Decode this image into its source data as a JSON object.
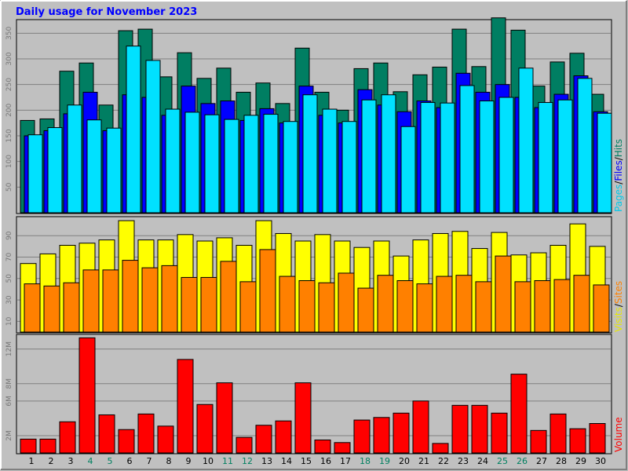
{
  "chart_data": {
    "type": "bar",
    "title": "Daily usage for November 2023",
    "x": [
      "1",
      "2",
      "3",
      "4",
      "5",
      "6",
      "7",
      "8",
      "9",
      "10",
      "11",
      "12",
      "13",
      "14",
      "15",
      "16",
      "17",
      "18",
      "19",
      "20",
      "21",
      "22",
      "23",
      "24",
      "25",
      "26",
      "27",
      "28",
      "29",
      "30"
    ],
    "weekend_days": [
      "4",
      "5",
      "11",
      "12",
      "18",
      "19",
      "25",
      "26"
    ],
    "panels": [
      {
        "id": "hits_files_pages",
        "label_parts": [
          {
            "text": "Pages",
            "color": "#00c8e8"
          },
          {
            "text": "/",
            "color": "#000000"
          },
          {
            "text": "Files",
            "color": "#0000ff"
          },
          {
            "text": "/",
            "color": "#000000"
          },
          {
            "text": "Hits",
            "color": "#007e62"
          }
        ],
        "ylim": [
          0,
          375
        ],
        "yticks": [
          50,
          100,
          150,
          200,
          250,
          300,
          350
        ],
        "ytick_labels": [
          "50",
          "100",
          "150",
          "200",
          "250",
          "300",
          "350"
        ],
        "series": [
          {
            "name": "Hits",
            "color": "#007e62",
            "values": [
              180,
              183,
              276,
              292,
              210,
              355,
              358,
              265,
              312,
              262,
              282,
              235,
              253,
              213,
              321,
              235,
              200,
              281,
              292,
              236,
              269,
              284,
              358,
              285,
              380,
              356,
              247,
              294,
              311,
              231
            ]
          },
          {
            "name": "Files",
            "color": "#0000ff",
            "values": [
              150,
              160,
              193,
              235,
              160,
              230,
              225,
              190,
              247,
              213,
              218,
              180,
              203,
              175,
              247,
              190,
              175,
              240,
              210,
              197,
              218,
              205,
              272,
              235,
              250,
              225,
              205,
              231,
              267,
              197
            ]
          },
          {
            "name": "Pages",
            "color": "#00e1ff",
            "values": [
              152,
              166,
              210,
              181,
              165,
              325,
              297,
              202,
              196,
              191,
              182,
              190,
              192,
              178,
              230,
              202,
              178,
              220,
              230,
              168,
              215,
              214,
              248,
              218,
              225,
              282,
              215,
              220,
              262,
              194
            ]
          }
        ]
      },
      {
        "id": "sites_visits",
        "label_parts": [
          {
            "text": "Visits",
            "color": "#e8e800"
          },
          {
            "text": "/",
            "color": "#000000"
          },
          {
            "text": "Sites",
            "color": "#ff8000"
          }
        ],
        "ylim": [
          0,
          107
        ],
        "yticks": [
          10,
          30,
          50,
          70,
          90
        ],
        "ytick_labels": [
          "10",
          "30",
          "50",
          "70",
          "90"
        ],
        "series": [
          {
            "name": "Visits",
            "color": "#ffff00",
            "values": [
              64,
              73,
              81,
              83,
              86,
              104,
              86,
              86,
              91,
              85,
              88,
              81,
              104,
              92,
              85,
              91,
              85,
              79,
              85,
              71,
              86,
              92,
              94,
              78,
              93,
              72,
              74,
              81,
              101,
              80
            ]
          },
          {
            "name": "Sites",
            "color": "#ff8000",
            "values": [
              45,
              43,
              46,
              58,
              58,
              67,
              60,
              62,
              51,
              51,
              66,
              47,
              77,
              52,
              48,
              46,
              55,
              41,
              53,
              48,
              45,
              52,
              53,
              47,
              71,
              47,
              48,
              49,
              53,
              44
            ]
          }
        ]
      },
      {
        "id": "volume",
        "label_parts": [
          {
            "text": "Volume",
            "color": "#ff0000"
          }
        ],
        "ylim": [
          0,
          13.6
        ],
        "yticks": [
          2,
          6,
          8,
          12
        ],
        "ytick_labels": [
          "2M",
          "6M",
          "8M",
          "12M"
        ],
        "series": [
          {
            "name": "Volume",
            "color": "#ff0000",
            "values": [
              1.6,
              1.6,
              3.6,
              13.3,
              4.4,
              2.7,
              4.5,
              3.1,
              10.8,
              5.6,
              8.1,
              1.8,
              3.2,
              3.7,
              8.1,
              1.5,
              1.2,
              3.8,
              4.1,
              4.6,
              6.0,
              1.1,
              5.5,
              5.5,
              4.6,
              9.1,
              2.6,
              4.5,
              2.8,
              3.4
            ]
          }
        ]
      }
    ]
  }
}
